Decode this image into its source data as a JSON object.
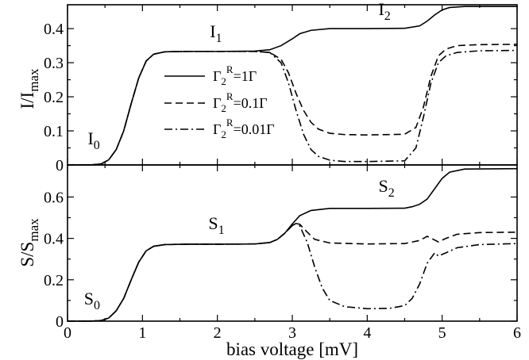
{
  "chart_data": {
    "type": "line",
    "xlabel": "bias voltage [mV]",
    "xlim": [
      0,
      6
    ],
    "xticks": [
      0,
      1,
      2,
      3,
      4,
      5,
      6
    ],
    "legend": {
      "placement": "inside-top-panel-center-left",
      "entries": [
        {
          "base": "Γ",
          "sub": "2",
          "sup": "R",
          "rest": "=1Γ",
          "style": "solid"
        },
        {
          "base": "Γ",
          "sub": "2",
          "sup": "R",
          "rest": "=0.1Γ",
          "style": "dashed"
        },
        {
          "base": "Γ",
          "sub": "2",
          "sup": "R",
          "rest": "=0.01Γ",
          "style": "dashdot"
        }
      ]
    },
    "panels": [
      {
        "id": "current",
        "ylabel": {
          "main": "I/I",
          "sub": "max"
        },
        "ylim": [
          0,
          0.47
        ],
        "yticks": [
          0,
          0.1,
          0.2,
          0.3,
          0.4
        ],
        "yticklabels": [
          "0",
          "0.1",
          "0.2",
          "0.3",
          "0.4"
        ],
        "annotations": [
          {
            "base": "I",
            "sub": "0",
            "x": 0.27,
            "y": 0.06
          },
          {
            "base": "I",
            "sub": "1",
            "x": 1.9,
            "y": 0.375
          },
          {
            "base": "I",
            "sub": "2",
            "x": 4.15,
            "y": 0.44
          }
        ],
        "series": [
          {
            "style": "solid",
            "x": [
              0,
              0.3,
              0.45,
              0.55,
              0.65,
              0.75,
              0.85,
              0.95,
              1.05,
              1.15,
              1.3,
              1.6,
              2.0,
              2.5,
              2.7,
              2.85,
              3.0,
              3.1,
              3.25,
              3.5,
              4.0,
              4.5,
              4.7,
              4.8,
              4.9,
              5.0,
              5.1,
              5.3,
              6.0
            ],
            "y": [
              0,
              0,
              0.003,
              0.015,
              0.045,
              0.1,
              0.18,
              0.255,
              0.305,
              0.325,
              0.332,
              0.333,
              0.333,
              0.334,
              0.338,
              0.35,
              0.37,
              0.385,
              0.395,
              0.4,
              0.4,
              0.401,
              0.408,
              0.422,
              0.44,
              0.455,
              0.462,
              0.465,
              0.465
            ]
          },
          {
            "style": "dashed",
            "x": [
              0,
              0.3,
              0.45,
              0.55,
              0.65,
              0.75,
              0.85,
              0.95,
              1.05,
              1.15,
              1.3,
              1.6,
              2.0,
              2.5,
              2.7,
              2.85,
              2.95,
              3.05,
              3.15,
              3.25,
              3.35,
              3.5,
              3.7,
              4.0,
              4.5,
              4.65,
              4.75,
              4.85,
              4.95,
              5.05,
              5.2,
              5.5,
              6.0
            ],
            "y": [
              0,
              0,
              0.003,
              0.015,
              0.045,
              0.1,
              0.18,
              0.255,
              0.305,
              0.325,
              0.332,
              0.333,
              0.333,
              0.333,
              0.33,
              0.31,
              0.27,
              0.21,
              0.16,
              0.125,
              0.105,
              0.093,
              0.089,
              0.088,
              0.09,
              0.11,
              0.17,
              0.26,
              0.32,
              0.34,
              0.35,
              0.353,
              0.354
            ]
          },
          {
            "style": "dashdot",
            "x": [
              0,
              0.3,
              0.45,
              0.55,
              0.65,
              0.75,
              0.85,
              0.95,
              1.05,
              1.15,
              1.3,
              1.6,
              2.0,
              2.5,
              2.7,
              2.85,
              2.95,
              3.05,
              3.15,
              3.25,
              3.35,
              3.5,
              3.7,
              4.0,
              4.5,
              4.65,
              4.75,
              4.85,
              4.95,
              5.05,
              5.2,
              5.5,
              6.0
            ],
            "y": [
              0,
              0,
              0.003,
              0.015,
              0.045,
              0.1,
              0.18,
              0.255,
              0.305,
              0.325,
              0.332,
              0.333,
              0.333,
              0.333,
              0.33,
              0.3,
              0.24,
              0.16,
              0.09,
              0.045,
              0.025,
              0.014,
              0.01,
              0.01,
              0.012,
              0.05,
              0.14,
              0.24,
              0.3,
              0.32,
              0.33,
              0.335,
              0.336
            ]
          }
        ]
      },
      {
        "id": "noise",
        "ylabel": {
          "main": "S/S",
          "sub": "max"
        },
        "ylim": [
          0,
          0.755
        ],
        "yticks": [
          0,
          0.2,
          0.4,
          0.6
        ],
        "yticklabels": [
          "0",
          "0.2",
          "0.4",
          "0.6"
        ],
        "annotations": [
          {
            "base": "S",
            "sub": "0",
            "x": 0.22,
            "y": 0.08
          },
          {
            "base": "S",
            "sub": "1",
            "x": 1.88,
            "y": 0.445
          },
          {
            "base": "S",
            "sub": "2",
            "x": 4.15,
            "y": 0.625
          }
        ],
        "series": [
          {
            "style": "solid",
            "x": [
              0,
              0.3,
              0.45,
              0.55,
              0.65,
              0.75,
              0.85,
              0.95,
              1.05,
              1.15,
              1.3,
              1.6,
              2.0,
              2.5,
              2.7,
              2.8,
              2.9,
              3.0,
              3.1,
              3.25,
              3.5,
              4.0,
              4.5,
              4.6,
              4.7,
              4.8,
              4.9,
              5.0,
              5.1,
              5.3,
              6.0
            ],
            "y": [
              0,
              0,
              0.003,
              0.015,
              0.05,
              0.11,
              0.2,
              0.285,
              0.34,
              0.362,
              0.37,
              0.372,
              0.372,
              0.373,
              0.38,
              0.395,
              0.425,
              0.47,
              0.51,
              0.535,
              0.545,
              0.545,
              0.546,
              0.553,
              0.565,
              0.59,
              0.64,
              0.69,
              0.72,
              0.735,
              0.737
            ]
          },
          {
            "style": "dashed",
            "x": [
              0,
              0.3,
              0.45,
              0.55,
              0.65,
              0.75,
              0.85,
              0.95,
              1.05,
              1.15,
              1.3,
              1.6,
              2.0,
              2.5,
              2.7,
              2.8,
              2.9,
              3.0,
              3.05,
              3.1,
              3.2,
              3.3,
              3.5,
              4.0,
              4.5,
              4.7,
              4.8,
              4.9,
              4.95,
              5.05,
              5.2,
              5.5,
              6.0
            ],
            "y": [
              0,
              0,
              0.003,
              0.015,
              0.05,
              0.11,
              0.2,
              0.285,
              0.34,
              0.362,
              0.37,
              0.372,
              0.372,
              0.373,
              0.38,
              0.395,
              0.425,
              0.462,
              0.472,
              0.468,
              0.43,
              0.395,
              0.378,
              0.373,
              0.375,
              0.39,
              0.41,
              0.392,
              0.383,
              0.4,
              0.42,
              0.428,
              0.43
            ]
          },
          {
            "style": "dashdot",
            "x": [
              0,
              0.3,
              0.45,
              0.55,
              0.65,
              0.75,
              0.85,
              0.95,
              1.05,
              1.15,
              1.3,
              1.6,
              2.0,
              2.5,
              2.7,
              2.8,
              2.9,
              3.0,
              3.05,
              3.1,
              3.2,
              3.3,
              3.4,
              3.5,
              3.7,
              4.0,
              4.3,
              4.5,
              4.6,
              4.7,
              4.8,
              4.9,
              4.95,
              5.05,
              5.2,
              5.5,
              6.0
            ],
            "y": [
              0,
              0,
              0.003,
              0.015,
              0.05,
              0.11,
              0.2,
              0.285,
              0.34,
              0.362,
              0.37,
              0.372,
              0.372,
              0.373,
              0.38,
              0.395,
              0.425,
              0.462,
              0.472,
              0.46,
              0.38,
              0.26,
              0.16,
              0.1,
              0.07,
              0.06,
              0.062,
              0.075,
              0.11,
              0.18,
              0.28,
              0.33,
              0.315,
              0.33,
              0.355,
              0.37,
              0.375
            ]
          }
        ]
      }
    ]
  }
}
